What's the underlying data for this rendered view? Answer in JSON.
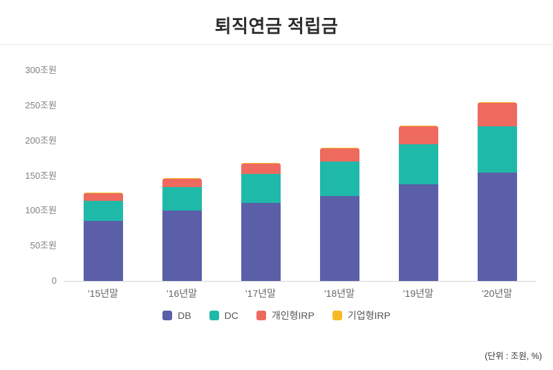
{
  "title": "퇴직연금 적립금",
  "footnote": "(단위 : 조원, %)",
  "chart_data": {
    "type": "bar",
    "stacked": true,
    "title": "퇴직연금 적립금",
    "unit_note": "(단위 : 조원, %)",
    "categories": [
      "'15년말",
      "'16년말",
      "'17년말",
      "'18년말",
      "'19년말",
      "'20년말"
    ],
    "series": [
      {
        "name": "DB",
        "color": "#5a5fa8",
        "values": [
          86,
          100,
          111,
          121,
          138,
          154
        ]
      },
      {
        "name": "DC",
        "color": "#1fb9a9",
        "values": [
          28,
          34,
          41,
          49,
          57,
          66
        ]
      },
      {
        "name": "개인형IRP",
        "color": "#ee6a5f",
        "values": [
          11,
          12,
          15,
          19,
          25,
          34
        ]
      },
      {
        "name": "기업형IRP",
        "color": "#f9b825",
        "values": [
          1,
          1,
          1,
          1,
          1,
          1
        ]
      }
    ],
    "totals": [
      126,
      147,
      168,
      190,
      221,
      255
    ],
    "ylim": [
      0,
      300
    ],
    "yticks": [
      300,
      250,
      200,
      150,
      100,
      50,
      0
    ],
    "ytick_labels": [
      "300조원",
      "250조원",
      "200조원",
      "150조원",
      "100조원",
      "50조원",
      "0"
    ],
    "xlabel": "",
    "ylabel": "",
    "grid": false,
    "legend_position": "bottom"
  }
}
